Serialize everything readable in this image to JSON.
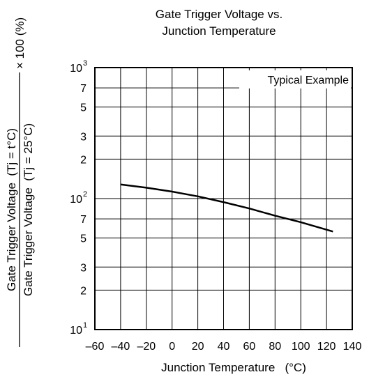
{
  "chart_data": {
    "type": "line",
    "title_lines": [
      "Gate Trigger Voltage vs.",
      "Junction Temperature"
    ],
    "xlabel": "Junction Temperature   (°C)",
    "ylabel_numerator": "Gate Trigger Voltage  (Tj = t°C)",
    "ylabel_denominator": "Gate Trigger Voltage  (Tj = 25°C)",
    "ylabel_suffix": "× 100 (%)",
    "annotation": "Typical Example",
    "xlim": [
      -60,
      140
    ],
    "ylim": [
      10,
      1000
    ],
    "y_scale": "log",
    "grid": true,
    "x_ticks": [
      -60,
      -40,
      -20,
      0,
      20,
      40,
      60,
      80,
      100,
      120,
      140
    ],
    "x_tick_labels": [
      "–60",
      "–40",
      "–20",
      "0",
      "20",
      "40",
      "60",
      "80",
      "100",
      "120",
      "140"
    ],
    "y_gridlines": [
      10,
      20,
      30,
      50,
      70,
      100,
      200,
      300,
      500,
      700,
      1000
    ],
    "y_tick_labels": [
      {
        "value": 1000,
        "base": "10",
        "exp": "3"
      },
      {
        "value": 700,
        "base": "7",
        "exp": ""
      },
      {
        "value": 500,
        "base": "5",
        "exp": ""
      },
      {
        "value": 300,
        "base": "3",
        "exp": ""
      },
      {
        "value": 200,
        "base": "2",
        "exp": ""
      },
      {
        "value": 100,
        "base": "10",
        "exp": "2"
      },
      {
        "value": 70,
        "base": "7",
        "exp": ""
      },
      {
        "value": 50,
        "base": "5",
        "exp": ""
      },
      {
        "value": 30,
        "base": "3",
        "exp": ""
      },
      {
        "value": 20,
        "base": "2",
        "exp": ""
      },
      {
        "value": 10,
        "base": "10",
        "exp": "1"
      }
    ],
    "series": [
      {
        "x": [
          -40,
          -20,
          0,
          20,
          40,
          60,
          80,
          100,
          125
        ],
        "y": [
          128,
          121,
          113,
          104,
          94,
          84,
          74,
          66,
          56
        ]
      }
    ]
  }
}
